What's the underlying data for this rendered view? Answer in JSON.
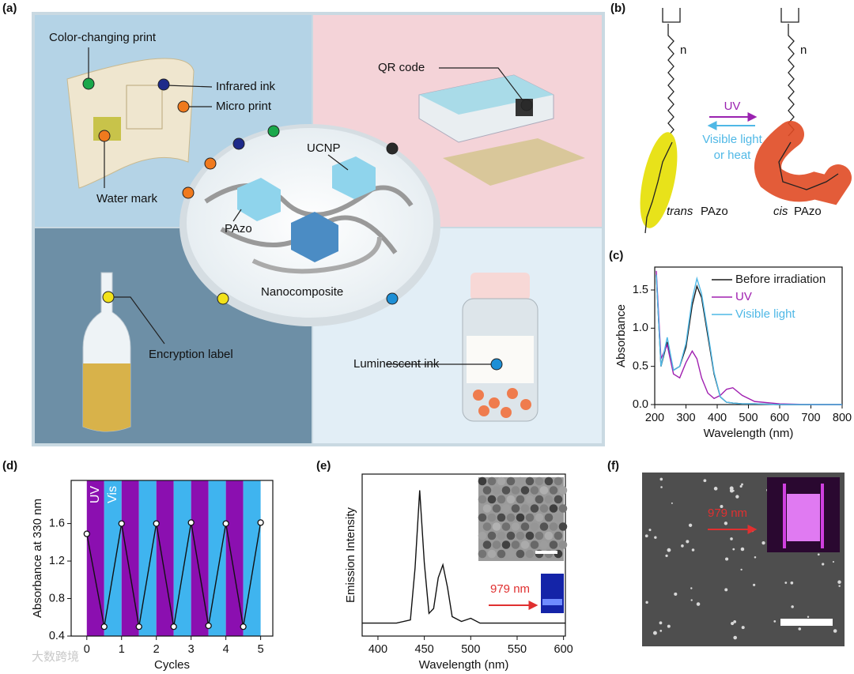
{
  "panel_labels": [
    "(a)",
    "(b)",
    "(c)",
    "(d)",
    "(e)",
    "(f)"
  ],
  "illustration_a": {
    "labels": [
      "Color-changing print",
      "Infrared ink",
      "Micro print",
      "Water mark",
      "QR code",
      "UCNP",
      "PAzo",
      "Nanocomposite",
      "Encryption label",
      "Luminescent ink"
    ]
  },
  "illustration_b": {
    "arrow_top": "UV",
    "arrow_bottom": [
      "Visible light",
      "or heat"
    ],
    "trans": "trans",
    "cis": "cis",
    "compound": "PAzo",
    "repeat": "n"
  },
  "inset_e_annotation": "979 nm",
  "image_f_annotation": "979 nm",
  "watermark": "大数跨境",
  "chart_data": [
    {
      "type": "line",
      "xlabel": "Wavelength (nm)",
      "ylabel": "Absorbance",
      "x": [
        205,
        220,
        240,
        260,
        280,
        300,
        320,
        335,
        350,
        370,
        390,
        410,
        430,
        450,
        480,
        520,
        600,
        700,
        800
      ],
      "series": [
        {
          "name": "Before irradiation",
          "color": "#1a1a1a",
          "values": [
            1.7,
            0.5,
            0.82,
            0.45,
            0.5,
            0.75,
            1.3,
            1.55,
            1.4,
            0.9,
            0.4,
            0.1,
            0.03,
            0.02,
            0.01,
            0.01,
            0,
            0,
            0
          ]
        },
        {
          "name": "UV",
          "color": "#a020b0",
          "values": [
            1.75,
            0.6,
            0.78,
            0.4,
            0.35,
            0.55,
            0.7,
            0.6,
            0.35,
            0.15,
            0.08,
            0.12,
            0.2,
            0.22,
            0.12,
            0.04,
            0.01,
            0,
            0
          ]
        },
        {
          "name": "Visible light",
          "color": "#4fb8e6",
          "values": [
            1.7,
            0.5,
            0.88,
            0.45,
            0.5,
            0.8,
            1.38,
            1.65,
            1.45,
            0.95,
            0.42,
            0.1,
            0.03,
            0.02,
            0.01,
            0.01,
            0,
            0,
            0
          ]
        }
      ],
      "xlim": [
        200,
        800
      ],
      "xticks": [
        200,
        300,
        400,
        500,
        600,
        700,
        800
      ],
      "ylim": [
        0,
        1.8
      ],
      "yticks": [
        {
          "value": 0,
          "label": "0.0"
        },
        0.5,
        {
          "value": 1,
          "label": "1.0"
        },
        1.5
      ],
      "legend": "upper right"
    },
    {
      "type": "line",
      "xlabel": "Cycles",
      "ylabel": "Absorbance at 330 nm",
      "x": [
        0,
        0.5,
        1,
        1.5,
        2,
        2.5,
        3,
        3.5,
        4,
        4.5,
        5
      ],
      "series": [
        {
          "color": "#111111",
          "values": [
            1.49,
            0.5,
            1.6,
            0.5,
            1.6,
            0.5,
            1.61,
            0.51,
            1.6,
            0.5,
            1.61
          ]
        }
      ],
      "bands": [
        {
          "name": "UV",
          "color": "#8b0fb0"
        },
        {
          "name": "Vis",
          "color": "#3fb4ef"
        }
      ],
      "markers": true,
      "xlim": [
        -0.45,
        5.35
      ],
      "xticks": [
        0,
        1,
        2,
        3,
        4,
        5
      ],
      "ylim": [
        0.4,
        2.06
      ],
      "yticks": [
        0.4,
        0.8,
        1.2,
        1.6
      ]
    },
    {
      "type": "line",
      "xlabel": "Wavelength (nm)",
      "ylabel": "Emission Intensity",
      "x": [
        383,
        420,
        435,
        440,
        445,
        450,
        455,
        460,
        465,
        470,
        475,
        480,
        490,
        500,
        510,
        530,
        602
      ],
      "series": [
        {
          "color": "#111111",
          "values": [
            0.08,
            0.08,
            0.1,
            0.42,
            0.9,
            0.45,
            0.14,
            0.17,
            0.36,
            0.44,
            0.3,
            0.12,
            0.09,
            0.11,
            0.08,
            0.08,
            0.08
          ]
        }
      ],
      "xlim": [
        383,
        602
      ],
      "xticks": [
        400,
        450,
        500,
        550,
        600
      ],
      "ylim": [
        0,
        1.0
      ]
    }
  ]
}
